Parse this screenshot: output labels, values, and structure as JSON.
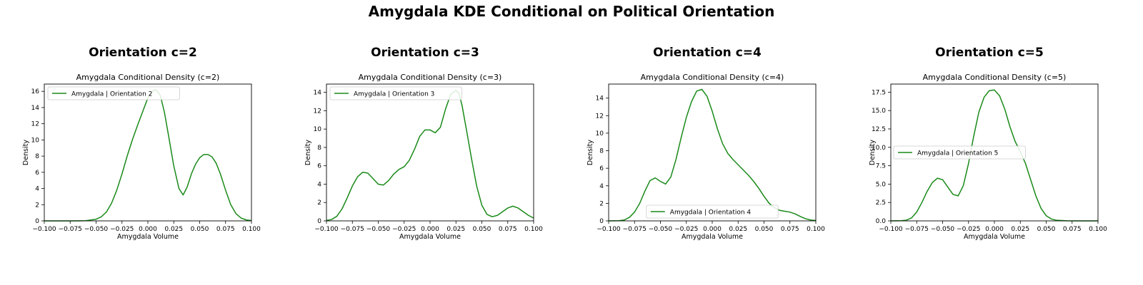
{
  "suptitle": "Amygdala KDE Conditional on Political Orientation",
  "colors": {
    "line": "#1a8a1a",
    "axes": "#000000",
    "legend_border": "#cccccc"
  },
  "chart_data": [
    {
      "type": "line",
      "heading": "Orientation c=2",
      "title": "Amygdala Conditional Density (c=2)",
      "xlabel": "Amygdala Volume",
      "ylabel": "Density",
      "xlim": [
        -0.1,
        0.1
      ],
      "ylim": [
        0,
        16.9
      ],
      "xticks": [
        -0.1,
        -0.075,
        -0.05,
        -0.025,
        0.0,
        0.025,
        0.05,
        0.075,
        0.1
      ],
      "xtick_labels": [
        "−0.100",
        "−0.075",
        "−0.050",
        "−0.025",
        "0.000",
        "0.025",
        "0.050",
        "0.075",
        "0.100"
      ],
      "yticks": [
        0,
        2,
        4,
        6,
        8,
        10,
        12,
        14,
        16
      ],
      "ytick_labels": [
        "0",
        "2",
        "4",
        "6",
        "8",
        "10",
        "12",
        "14",
        "16"
      ],
      "legend_position": "upper-left",
      "series": [
        {
          "name": "Amygdala | Orientation 2",
          "x": [
            -0.1,
            -0.09,
            -0.08,
            -0.07,
            -0.06,
            -0.05,
            -0.045,
            -0.04,
            -0.035,
            -0.03,
            -0.025,
            -0.02,
            -0.015,
            -0.01,
            -0.005,
            0.0,
            0.005,
            0.008,
            0.012,
            0.016,
            0.02,
            0.025,
            0.03,
            0.034,
            0.038,
            0.042,
            0.046,
            0.05,
            0.054,
            0.058,
            0.062,
            0.066,
            0.07,
            0.075,
            0.08,
            0.085,
            0.09,
            0.095,
            0.1
          ],
          "y": [
            0,
            0,
            0,
            0,
            0.02,
            0.2,
            0.5,
            1.1,
            2.2,
            3.8,
            5.8,
            8.0,
            10.0,
            11.8,
            13.5,
            15.2,
            16.1,
            16.2,
            15.5,
            13.4,
            10.5,
            6.8,
            4.0,
            3.2,
            4.2,
            5.8,
            7.0,
            7.8,
            8.2,
            8.2,
            7.9,
            7.1,
            5.8,
            3.8,
            2.0,
            0.9,
            0.35,
            0.12,
            0.03
          ]
        }
      ]
    },
    {
      "type": "line",
      "heading": "Orientation c=3",
      "title": "Amygdala Conditional Density (c=3)",
      "xlabel": "Amygdala Volume",
      "ylabel": "Density",
      "xlim": [
        -0.1,
        0.1
      ],
      "ylim": [
        0,
        14.9
      ],
      "xticks": [
        -0.1,
        -0.075,
        -0.05,
        -0.025,
        0.0,
        0.025,
        0.05,
        0.075,
        0.1
      ],
      "xtick_labels": [
        "−0.100",
        "−0.075",
        "−0.050",
        "−0.025",
        "0.000",
        "0.025",
        "0.050",
        "0.075",
        "0.100"
      ],
      "yticks": [
        0,
        2,
        4,
        6,
        8,
        10,
        12,
        14
      ],
      "ytick_labels": [
        "0",
        "2",
        "4",
        "6",
        "8",
        "10",
        "12",
        "14"
      ],
      "legend_position": "upper-left",
      "series": [
        {
          "name": "Amygdala | Orientation 3",
          "x": [
            -0.1,
            -0.095,
            -0.09,
            -0.085,
            -0.08,
            -0.075,
            -0.07,
            -0.065,
            -0.06,
            -0.055,
            -0.05,
            -0.045,
            -0.04,
            -0.035,
            -0.03,
            -0.025,
            -0.02,
            -0.015,
            -0.01,
            -0.005,
            0.0,
            0.005,
            0.01,
            0.015,
            0.02,
            0.025,
            0.028,
            0.031,
            0.035,
            0.04,
            0.045,
            0.05,
            0.055,
            0.06,
            0.065,
            0.07,
            0.075,
            0.08,
            0.085,
            0.09,
            0.095,
            0.1
          ],
          "y": [
            0.05,
            0.15,
            0.5,
            1.3,
            2.5,
            3.8,
            4.8,
            5.3,
            5.2,
            4.6,
            4.0,
            3.9,
            4.4,
            5.1,
            5.6,
            5.9,
            6.6,
            7.8,
            9.2,
            9.9,
            9.9,
            9.6,
            10.2,
            12.2,
            13.8,
            14.2,
            13.9,
            12.5,
            10.0,
            6.8,
            3.8,
            1.7,
            0.7,
            0.45,
            0.6,
            1.0,
            1.4,
            1.6,
            1.4,
            1.0,
            0.6,
            0.3
          ]
        }
      ]
    },
    {
      "type": "line",
      "heading": "Orientation c=4",
      "title": "Amygdala Conditional Density (c=4)",
      "xlabel": "Amygdala Volume",
      "ylabel": "Density",
      "xlim": [
        -0.1,
        0.1
      ],
      "ylim": [
        0,
        15.6
      ],
      "xticks": [
        -0.1,
        -0.075,
        -0.05,
        -0.025,
        0.0,
        0.025,
        0.05,
        0.075,
        0.1
      ],
      "xtick_labels": [
        "−0.100",
        "−0.075",
        "−0.050",
        "−0.025",
        "0.000",
        "0.025",
        "0.050",
        "0.075",
        "0.100"
      ],
      "yticks": [
        0,
        2,
        4,
        6,
        8,
        10,
        12,
        14
      ],
      "ytick_labels": [
        "0",
        "2",
        "4",
        "6",
        "8",
        "10",
        "12",
        "14"
      ],
      "legend_position": "lower-center",
      "series": [
        {
          "name": "Amygdala | Orientation 4",
          "x": [
            -0.1,
            -0.09,
            -0.085,
            -0.08,
            -0.075,
            -0.07,
            -0.065,
            -0.06,
            -0.055,
            -0.05,
            -0.045,
            -0.04,
            -0.035,
            -0.03,
            -0.025,
            -0.02,
            -0.015,
            -0.01,
            -0.005,
            0.0,
            0.005,
            0.01,
            0.015,
            0.02,
            0.025,
            0.03,
            0.035,
            0.04,
            0.045,
            0.05,
            0.055,
            0.06,
            0.065,
            0.07,
            0.075,
            0.08,
            0.085,
            0.09,
            0.095,
            0.1
          ],
          "y": [
            0,
            0.02,
            0.1,
            0.4,
            1.0,
            2.0,
            3.4,
            4.6,
            4.9,
            4.5,
            4.2,
            5.0,
            7.0,
            9.5,
            11.8,
            13.6,
            14.8,
            15.0,
            14.2,
            12.5,
            10.5,
            8.8,
            7.7,
            7.0,
            6.4,
            5.8,
            5.2,
            4.5,
            3.7,
            2.8,
            2.0,
            1.5,
            1.2,
            1.1,
            1.0,
            0.8,
            0.5,
            0.25,
            0.1,
            0.04
          ]
        }
      ]
    },
    {
      "type": "line",
      "heading": "Orientation c=5",
      "title": "Amygdala Conditional Density (c=5)",
      "xlabel": "Amygdala Volume",
      "ylabel": "Density",
      "xlim": [
        -0.1,
        0.1
      ],
      "ylim": [
        0,
        18.6
      ],
      "xticks": [
        -0.1,
        -0.075,
        -0.05,
        -0.025,
        0.0,
        0.025,
        0.05,
        0.075,
        0.1
      ],
      "xtick_labels": [
        "−0.100",
        "−0.075",
        "−0.050",
        "−0.025",
        "0.000",
        "0.025",
        "0.050",
        "0.075",
        "0.100"
      ],
      "yticks": [
        0,
        2.5,
        5,
        7.5,
        10,
        12.5,
        15,
        17.5
      ],
      "ytick_labels": [
        "0.0",
        "2.5",
        "5.0",
        "7.5",
        "10.0",
        "12.5",
        "15.0",
        "17.5"
      ],
      "legend_position": "center-left",
      "series": [
        {
          "name": "Amygdala | Orientation 5",
          "x": [
            -0.1,
            -0.09,
            -0.085,
            -0.08,
            -0.075,
            -0.07,
            -0.065,
            -0.06,
            -0.055,
            -0.05,
            -0.045,
            -0.04,
            -0.035,
            -0.03,
            -0.025,
            -0.02,
            -0.015,
            -0.01,
            -0.005,
            0.0,
            0.005,
            0.01,
            0.015,
            0.02,
            0.025,
            0.03,
            0.035,
            0.04,
            0.045,
            0.05,
            0.055,
            0.06,
            0.07,
            0.08,
            0.09,
            0.1
          ],
          "y": [
            0,
            0.02,
            0.1,
            0.4,
            1.2,
            2.5,
            4.0,
            5.2,
            5.8,
            5.6,
            4.6,
            3.6,
            3.4,
            4.8,
            7.8,
            11.5,
            14.8,
            16.8,
            17.7,
            17.8,
            17.0,
            15.2,
            12.8,
            10.8,
            9.4,
            7.8,
            5.6,
            3.4,
            1.7,
            0.7,
            0.25,
            0.08,
            0.01,
            0,
            0,
            0
          ]
        }
      ]
    }
  ]
}
